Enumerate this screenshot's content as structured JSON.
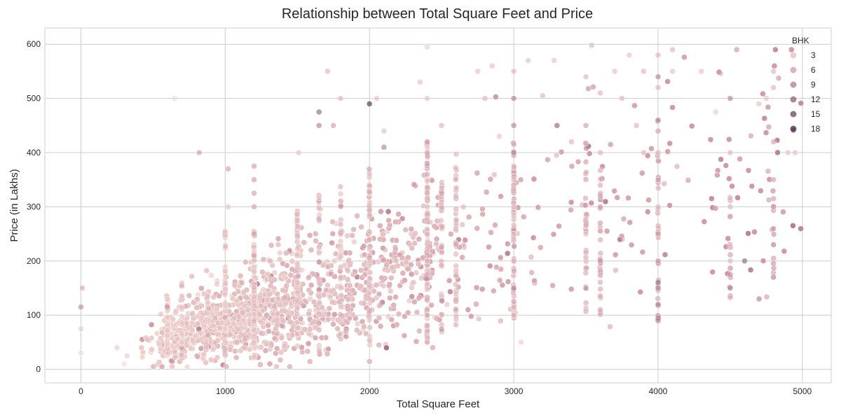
{
  "chart_data": {
    "type": "scatter",
    "title": "Relationship between Total Square Feet and Price",
    "xlabel": "Total Square Feet",
    "ylabel": "Price (in Lakhs)",
    "xlim": [
      -250,
      5200
    ],
    "ylim": [
      -25,
      630
    ],
    "xticks": [
      0,
      1000,
      2000,
      3000,
      4000,
      5000
    ],
    "yticks": [
      0,
      100,
      200,
      300,
      400,
      500,
      600
    ],
    "grid": true,
    "legend": {
      "title": "BHK",
      "placement": "top-right",
      "entries": [
        {
          "label": "3",
          "bhk": 3
        },
        {
          "label": "6",
          "bhk": 6
        },
        {
          "label": "9",
          "bhk": 9
        },
        {
          "label": "12",
          "bhk": 12
        },
        {
          "label": "15",
          "bhk": 15
        },
        {
          "label": "18",
          "bhk": 18
        }
      ]
    },
    "hue": "BHK",
    "colors": {
      "low": "#f2d6cf",
      "mid": "#c98ea0",
      "high": "#3b2f4a"
    },
    "points": [
      [
        0,
        115,
        8
      ],
      [
        10,
        150,
        5
      ],
      [
        0,
        75,
        2
      ],
      [
        0,
        30,
        1
      ],
      [
        250,
        40,
        2
      ],
      [
        300,
        10,
        1
      ],
      [
        320,
        25,
        2
      ],
      [
        650,
        500,
        1
      ],
      [
        820,
        400,
        6
      ],
      [
        1020,
        370,
        6
      ],
      [
        1020,
        300,
        3
      ],
      [
        1200,
        375,
        6
      ],
      [
        1200,
        350,
        6
      ],
      [
        1200,
        325,
        6
      ],
      [
        1200,
        300,
        6
      ],
      [
        1200,
        250,
        6
      ],
      [
        1200,
        210,
        6
      ],
      [
        1200,
        180,
        4
      ],
      [
        1200,
        150,
        4
      ],
      [
        1510,
        400,
        3
      ],
      [
        1650,
        475,
        12
      ],
      [
        1650,
        450,
        9
      ],
      [
        1710,
        550,
        4
      ],
      [
        1750,
        450,
        6
      ],
      [
        1800,
        500,
        4
      ],
      [
        2000,
        490,
        18
      ],
      [
        2050,
        500,
        3
      ],
      [
        2000,
        360,
        3
      ],
      [
        2100,
        440,
        3
      ],
      [
        2100,
        410,
        9
      ],
      [
        2400,
        595,
        2
      ],
      [
        2400,
        500,
        3
      ],
      [
        2400,
        420,
        6
      ],
      [
        2400,
        400,
        6
      ],
      [
        2400,
        380,
        6
      ],
      [
        2400,
        360,
        6
      ],
      [
        2400,
        300,
        4
      ],
      [
        2400,
        250,
        4
      ],
      [
        2400,
        200,
        4
      ],
      [
        2400,
        100,
        4
      ],
      [
        2400,
        50,
        4
      ],
      [
        2350,
        530,
        3
      ],
      [
        2500,
        450,
        4
      ],
      [
        2750,
        550,
        3
      ],
      [
        2850,
        560,
        3
      ],
      [
        2800,
        500,
        4
      ],
      [
        2900,
        430,
        3
      ],
      [
        3000,
        550,
        4
      ],
      [
        3000,
        500,
        9
      ],
      [
        3000,
        450,
        9
      ],
      [
        3000,
        400,
        9
      ],
      [
        3000,
        350,
        4
      ],
      [
        3000,
        300,
        4
      ],
      [
        3000,
        250,
        4
      ],
      [
        3000,
        200,
        4
      ],
      [
        3000,
        150,
        9
      ],
      [
        3000,
        100,
        4
      ],
      [
        3050,
        50,
        2
      ],
      [
        3100,
        570,
        3
      ],
      [
        3200,
        505,
        4
      ],
      [
        3280,
        570,
        3
      ],
      [
        3300,
        450,
        12
      ],
      [
        3400,
        420,
        4
      ],
      [
        3500,
        540,
        4
      ],
      [
        3540,
        598,
        4
      ],
      [
        3500,
        450,
        6
      ],
      [
        3500,
        350,
        4
      ],
      [
        3500,
        250,
        4
      ],
      [
        3500,
        150,
        6
      ],
      [
        3600,
        510,
        4
      ],
      [
        3600,
        400,
        4
      ],
      [
        3600,
        300,
        6
      ],
      [
        3600,
        200,
        6
      ],
      [
        3600,
        110,
        6
      ],
      [
        3700,
        550,
        3
      ],
      [
        3750,
        500,
        4
      ],
      [
        3800,
        580,
        3
      ],
      [
        3850,
        450,
        4
      ],
      [
        3900,
        550,
        4
      ],
      [
        3900,
        400,
        4
      ],
      [
        4000,
        580,
        4
      ],
      [
        4000,
        540,
        9
      ],
      [
        4000,
        520,
        4
      ],
      [
        4000,
        460,
        9
      ],
      [
        4000,
        440,
        6
      ],
      [
        4000,
        400,
        4
      ],
      [
        4000,
        350,
        6
      ],
      [
        4000,
        300,
        4
      ],
      [
        4000,
        250,
        6
      ],
      [
        4000,
        200,
        6
      ],
      [
        4000,
        160,
        12
      ],
      [
        4000,
        150,
        9
      ],
      [
        4000,
        120,
        9
      ],
      [
        4000,
        90,
        9
      ],
      [
        4100,
        590,
        4
      ],
      [
        4100,
        550,
        3
      ],
      [
        4300,
        550,
        3
      ],
      [
        4400,
        475,
        2
      ],
      [
        4500,
        500,
        9
      ],
      [
        4500,
        400,
        4
      ],
      [
        4500,
        300,
        4
      ],
      [
        4500,
        200,
        4
      ],
      [
        4500,
        150,
        9
      ],
      [
        4600,
        200,
        12
      ],
      [
        4700,
        490,
        3
      ],
      [
        4700,
        130,
        9
      ],
      [
        4750,
        500,
        3
      ],
      [
        4800,
        550,
        4
      ],
      [
        4800,
        520,
        4
      ],
      [
        4800,
        420,
        6
      ],
      [
        4800,
        350,
        6
      ],
      [
        4800,
        300,
        6
      ],
      [
        4800,
        230,
        9
      ],
      [
        4800,
        170,
        9
      ],
      [
        4900,
        400,
        3
      ],
      [
        4950,
        400,
        3
      ]
    ]
  }
}
